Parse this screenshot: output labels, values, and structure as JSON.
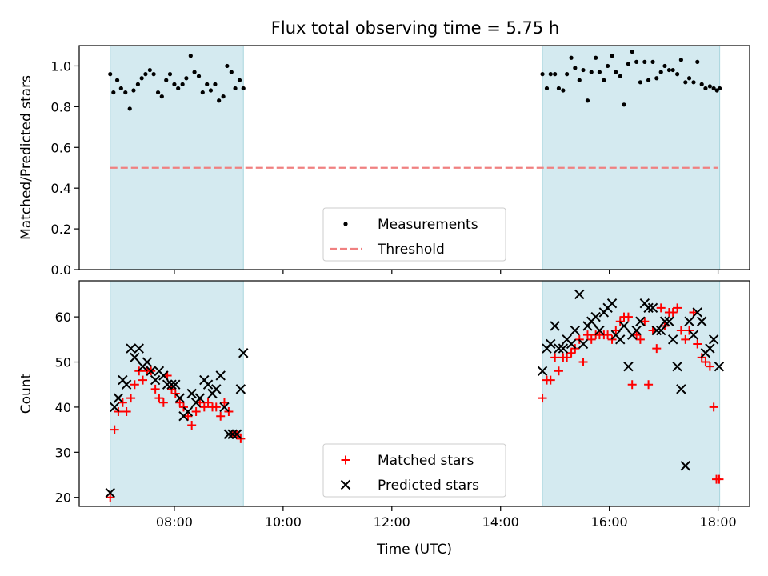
{
  "chart_data": [
    {
      "type": "scatter",
      "title": "Flux total observing time = 5.75 h",
      "xlabel": "",
      "ylabel": "Matched/Predicted stars",
      "ylim": [
        0,
        1.1
      ],
      "yticks": [
        0.0,
        0.2,
        0.4,
        0.6,
        0.8,
        1.0
      ],
      "ytick_labels": [
        "0.0",
        "0.2",
        "0.4",
        "0.6",
        "0.8",
        "1.0"
      ],
      "x_unit": "hours UTC",
      "xlim": [
        6.25,
        18.58
      ],
      "observing_windows": [
        [
          6.82,
          9.27
        ],
        [
          14.77,
          18.03
        ]
      ],
      "series": [
        {
          "name": "Measurements",
          "marker": "dot",
          "color": "#000000",
          "x": [
            6.82,
            6.88,
            6.95,
            7.02,
            7.1,
            7.18,
            7.25,
            7.33,
            7.4,
            7.47,
            7.55,
            7.62,
            7.7,
            7.77,
            7.85,
            7.92,
            8.0,
            8.07,
            8.15,
            8.22,
            8.3,
            8.37,
            8.45,
            8.52,
            8.6,
            8.67,
            8.75,
            8.82,
            8.9,
            8.97,
            9.05,
            9.12,
            9.2,
            9.27,
            14.77,
            14.85,
            14.92,
            15.0,
            15.07,
            15.15,
            15.22,
            15.3,
            15.37,
            15.45,
            15.52,
            15.6,
            15.67,
            15.75,
            15.82,
            15.9,
            15.97,
            16.05,
            16.12,
            16.2,
            16.27,
            16.35,
            16.42,
            16.5,
            16.57,
            16.65,
            16.72,
            16.8,
            16.87,
            16.95,
            17.02,
            17.1,
            17.17,
            17.25,
            17.32,
            17.4,
            17.47,
            17.55,
            17.62,
            17.7,
            17.77,
            17.85,
            17.92,
            17.98,
            18.03
          ],
          "y": [
            0.96,
            0.87,
            0.93,
            0.89,
            0.87,
            0.79,
            0.88,
            0.91,
            0.94,
            0.96,
            0.98,
            0.96,
            0.87,
            0.85,
            0.93,
            0.96,
            0.91,
            0.89,
            0.91,
            0.94,
            1.05,
            0.97,
            0.95,
            0.87,
            0.91,
            0.88,
            0.91,
            0.83,
            0.85,
            1.0,
            0.97,
            0.89,
            0.93,
            0.89,
            0.96,
            0.89,
            0.96,
            0.96,
            0.89,
            0.88,
            0.96,
            1.04,
            0.99,
            0.93,
            0.98,
            0.83,
            0.97,
            1.04,
            0.97,
            0.93,
            1.0,
            1.05,
            0.97,
            0.95,
            0.81,
            1.01,
            1.07,
            1.02,
            0.92,
            1.02,
            0.93,
            1.02,
            0.94,
            0.97,
            1.0,
            0.98,
            0.98,
            0.96,
            1.03,
            0.92,
            0.94,
            0.92,
            1.02,
            0.91,
            0.89,
            0.9,
            0.89,
            0.88,
            0.89
          ]
        },
        {
          "name": "Threshold",
          "marker": "dashed-line",
          "color": "#f08080",
          "x": [
            6.82,
            18.0
          ],
          "y": [
            0.5,
            0.5
          ]
        }
      ],
      "legend": {
        "placement": "lower-center",
        "entries": [
          "Measurements",
          "Threshold"
        ]
      },
      "grid": false
    },
    {
      "type": "scatter",
      "title": "",
      "xlabel": "Time (UTC)",
      "ylabel": "Count",
      "ylim": [
        18,
        68
      ],
      "yticks": [
        20,
        30,
        40,
        50,
        60
      ],
      "ytick_labels": [
        "20",
        "30",
        "40",
        "50",
        "60"
      ],
      "x_unit": "hours UTC",
      "xlim": [
        6.25,
        18.58
      ],
      "xticks": [
        8,
        10,
        12,
        14,
        16,
        18
      ],
      "xtick_labels": [
        "08:00",
        "10:00",
        "12:00",
        "14:00",
        "16:00",
        "18:00"
      ],
      "observing_windows": [
        [
          6.82,
          9.27
        ],
        [
          14.77,
          18.03
        ]
      ],
      "series": [
        {
          "name": "Matched stars",
          "marker": "plus",
          "color": "#ff0000",
          "x": [
            6.82,
            6.9,
            6.97,
            7.05,
            7.12,
            7.2,
            7.27,
            7.35,
            7.42,
            7.5,
            7.57,
            7.65,
            7.72,
            7.8,
            7.87,
            7.95,
            8.02,
            8.1,
            8.17,
            8.25,
            8.32,
            8.4,
            8.47,
            8.55,
            8.62,
            8.7,
            8.77,
            8.85,
            8.92,
            9.0,
            9.07,
            9.15,
            9.22,
            14.77,
            14.85,
            14.92,
            15.0,
            15.07,
            15.15,
            15.22,
            15.3,
            15.37,
            15.45,
            15.52,
            15.6,
            15.67,
            15.75,
            15.82,
            15.9,
            15.97,
            16.05,
            16.12,
            16.2,
            16.27,
            16.35,
            16.42,
            16.5,
            16.57,
            16.65,
            16.72,
            16.8,
            16.87,
            16.95,
            17.02,
            17.1,
            17.17,
            17.25,
            17.32,
            17.4,
            17.47,
            17.55,
            17.62,
            17.7,
            17.77,
            17.85,
            17.92,
            17.97,
            18.02
          ],
          "y": [
            20,
            35,
            39,
            41,
            39,
            42,
            45,
            48,
            46,
            48,
            48,
            44,
            42,
            41,
            47,
            44,
            43,
            41,
            40,
            38,
            36,
            39,
            41,
            40,
            41,
            40,
            40,
            38,
            41,
            39,
            34,
            34,
            33,
            42,
            46,
            46,
            51,
            48,
            51,
            51,
            52,
            53,
            55,
            50,
            56,
            55,
            56,
            56,
            56,
            56,
            55,
            57,
            59,
            60,
            60,
            45,
            56,
            55,
            59,
            45,
            57,
            53,
            62,
            58,
            61,
            61,
            62,
            57,
            55,
            57,
            61,
            54,
            51,
            50,
            49,
            40,
            24,
            24
          ],
          "y_note": "approximate"
        },
        {
          "name": "Predicted stars",
          "marker": "x",
          "color": "#000000",
          "x": [
            6.82,
            6.9,
            6.97,
            7.05,
            7.12,
            7.2,
            7.27,
            7.35,
            7.42,
            7.5,
            7.57,
            7.65,
            7.72,
            7.8,
            7.87,
            7.95,
            8.02,
            8.1,
            8.17,
            8.25,
            8.32,
            8.4,
            8.47,
            8.55,
            8.62,
            8.7,
            8.77,
            8.85,
            8.92,
            9.0,
            9.07,
            9.15,
            9.22,
            9.27,
            14.77,
            14.85,
            14.92,
            15.0,
            15.07,
            15.15,
            15.22,
            15.3,
            15.37,
            15.45,
            15.52,
            15.6,
            15.67,
            15.75,
            15.82,
            15.9,
            15.97,
            16.05,
            16.12,
            16.2,
            16.27,
            16.35,
            16.42,
            16.5,
            16.57,
            16.65,
            16.72,
            16.8,
            16.87,
            16.95,
            17.02,
            17.1,
            17.17,
            17.25,
            17.32,
            17.4,
            17.47,
            17.55,
            17.62,
            17.7,
            17.77,
            17.85,
            17.92,
            18.02
          ],
          "y": [
            21,
            40,
            42,
            46,
            45,
            53,
            51,
            53,
            49,
            50,
            48,
            46,
            48,
            47,
            45,
            45,
            45,
            42,
            38,
            39,
            43,
            41,
            42,
            46,
            45,
            43,
            44,
            47,
            40,
            34,
            34,
            34,
            44,
            52,
            48,
            53,
            54,
            58,
            53,
            53,
            55,
            54,
            57,
            65,
            54,
            58,
            59,
            60,
            57,
            61,
            62,
            63,
            56,
            55,
            58,
            49,
            56,
            57,
            59,
            63,
            62,
            62,
            57,
            57,
            59,
            59,
            55,
            49,
            44,
            27,
            59,
            56,
            61,
            59,
            52,
            53,
            55,
            49
          ],
          "y_note": "approximate"
        }
      ],
      "legend": {
        "placement": "lower-center",
        "entries": [
          "Matched stars",
          "Predicted stars"
        ]
      },
      "grid": false
    }
  ],
  "colors": {
    "shade": "#d4eaf0",
    "shade_edge": "#a9d6dd",
    "threshold": "#f08080",
    "matched": "#ff0000",
    "predicted": "#000000",
    "dots": "#000000"
  }
}
